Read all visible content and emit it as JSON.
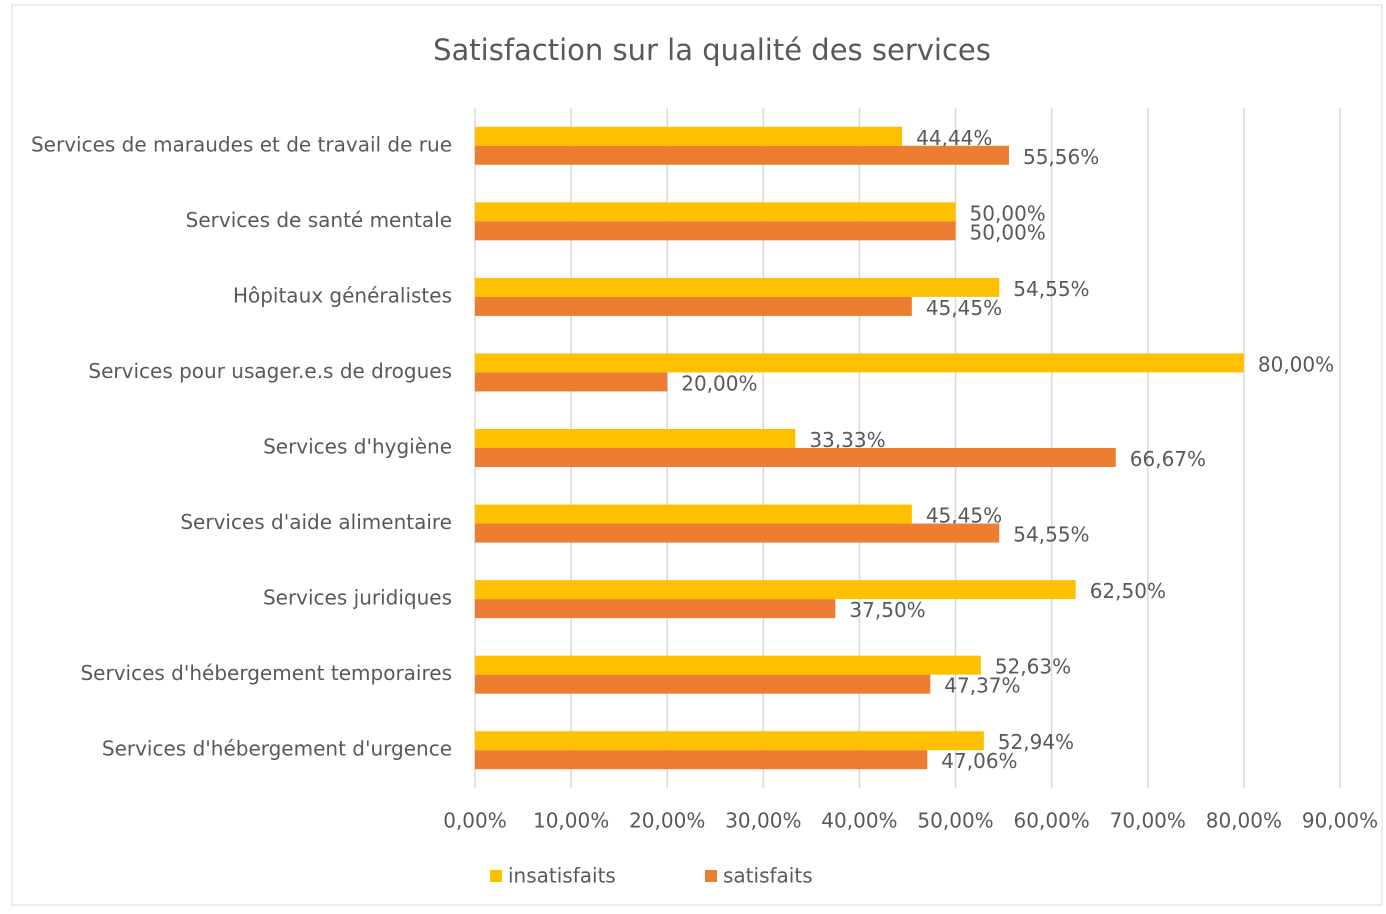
{
  "chart_data": {
    "type": "bar",
    "orientation": "horizontal",
    "title": "Satisfaction sur la qualité des services",
    "categories": [
      "Services de maraudes et de travail de rue",
      "Services de santé mentale",
      "Hôpitaux généralistes",
      "Services pour usager.e.s de drogues",
      "Services d'hygiène",
      "Services d'aide alimentaire",
      "Services juridiques",
      "Services d'hébergement temporaires",
      "Services d'hébergement d'urgence"
    ],
    "series": [
      {
        "name": "insatisfaits",
        "color": "#FFC000",
        "values": [
          44.44,
          50,
          54.55,
          80,
          33.33,
          45.45,
          62.5,
          52.63,
          52.94
        ],
        "value_labels": [
          "44,44%",
          "50,00%",
          "54,55%",
          "80,00%",
          "33,33%",
          "45,45%",
          "62,50%",
          "52,63%",
          "52,94%"
        ]
      },
      {
        "name": "satisfaits",
        "color": "#ED7D31",
        "values": [
          55.56,
          50,
          45.45,
          20,
          66.67,
          54.55,
          37.5,
          47.37,
          47.06
        ],
        "value_labels": [
          "55,56%",
          "50,00%",
          "45,45%",
          "20,00%",
          "66,67%",
          "54,55%",
          "37,50%",
          "47,37%",
          "47,06%"
        ]
      }
    ],
    "xlim": [
      0,
      90
    ],
    "xticks": [
      {
        "value": 0,
        "label": "0,00%"
      },
      {
        "value": 10,
        "label": "10,00%"
      },
      {
        "value": 20,
        "label": "20,00%"
      },
      {
        "value": 30,
        "label": "30,00%"
      },
      {
        "value": 40,
        "label": "40,00%"
      },
      {
        "value": 50,
        "label": "50,00%"
      },
      {
        "value": 60,
        "label": "60,00%"
      },
      {
        "value": 70,
        "label": "70,00%"
      },
      {
        "value": 80,
        "label": "80,00%"
      },
      {
        "value": 90,
        "label": "90,00%"
      }
    ],
    "grid": true,
    "legend": "bottom"
  }
}
